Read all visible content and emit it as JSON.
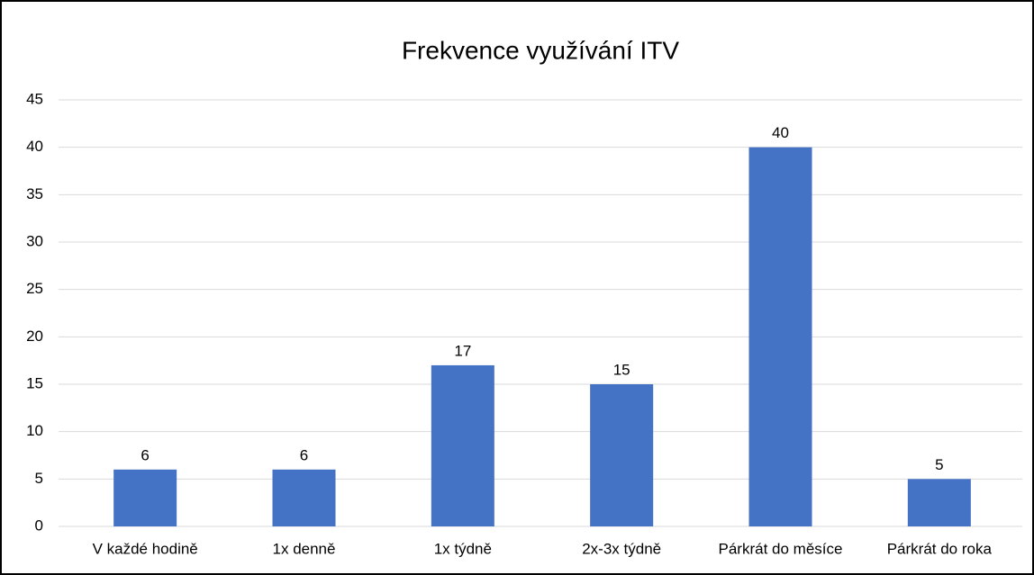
{
  "chart_data": {
    "type": "bar",
    "title": "Frekvence využívání ITV",
    "categories": [
      "V každé hodině",
      "1x denně",
      "1x týdně",
      "2x-3x týdně",
      "Párkrát do měsíce",
      "Párkrát do roka"
    ],
    "values": [
      6,
      6,
      17,
      15,
      40,
      5
    ],
    "color": "#4472c4",
    "ylim": [
      0,
      45
    ],
    "yticks": [
      0,
      5,
      10,
      15,
      20,
      25,
      30,
      35,
      40,
      45
    ],
    "grid": true
  }
}
